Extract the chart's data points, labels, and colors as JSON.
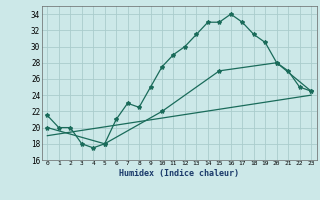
{
  "xlabel": "Humidex (Indice chaleur)",
  "background_color": "#cce8e8",
  "grid_color": "#aacccc",
  "line_color": "#1a6b5a",
  "xlim": [
    -0.5,
    23.5
  ],
  "ylim": [
    16,
    35
  ],
  "xticks": [
    0,
    1,
    2,
    3,
    4,
    5,
    6,
    7,
    8,
    9,
    10,
    11,
    12,
    13,
    14,
    15,
    16,
    17,
    18,
    19,
    20,
    21,
    22,
    23
  ],
  "yticks": [
    16,
    18,
    20,
    22,
    24,
    26,
    28,
    30,
    32,
    34
  ],
  "line1_x": [
    0,
    1,
    2,
    3,
    4,
    5,
    6,
    7,
    8,
    9,
    10,
    11,
    12,
    13,
    14,
    15,
    16,
    17,
    18,
    19,
    20,
    21,
    22,
    23
  ],
  "line1_y": [
    21.5,
    20,
    20,
    18,
    17.5,
    18,
    21,
    23,
    22.5,
    25,
    27.5,
    29,
    30,
    31.5,
    33,
    33,
    34,
    33,
    31.5,
    30.5,
    28,
    27,
    25,
    24.5
  ],
  "line2_x": [
    0,
    5,
    10,
    15,
    20,
    23
  ],
  "line2_y": [
    20,
    18,
    22,
    27,
    28,
    24.5
  ],
  "line3_x": [
    0,
    23
  ],
  "line3_y": [
    19,
    24
  ]
}
